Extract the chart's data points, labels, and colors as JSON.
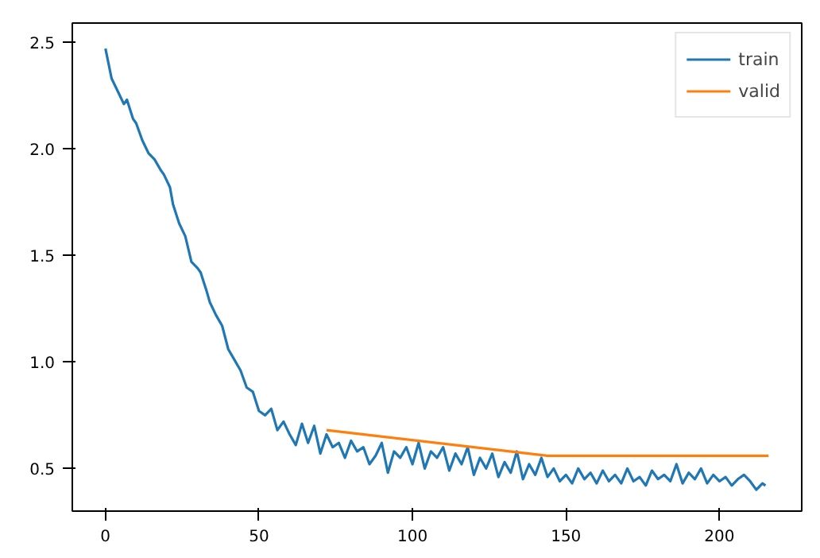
{
  "chart_data": {
    "type": "line",
    "xlim": [
      -10.8,
      226.8
    ],
    "ylim": [
      0.3,
      2.59
    ],
    "xticks": [
      0,
      50,
      100,
      150,
      200
    ],
    "yticks": [
      0.5,
      {
        "value": 1,
        "label": "1.0"
      },
      1.5,
      {
        "value": 2,
        "label": "2.0"
      },
      2.5
    ],
    "grid": false,
    "legend": "top right",
    "series": [
      {
        "name": "train",
        "color": "#1f77b4",
        "x": [
          0,
          2,
          4,
          6,
          7,
          9,
          10,
          12,
          14,
          16,
          18,
          19,
          21,
          22,
          24,
          26,
          28,
          30,
          31,
          33,
          34,
          36,
          38,
          40,
          42,
          44,
          46,
          48,
          50,
          52,
          54,
          56,
          58,
          60,
          62,
          64,
          66,
          68,
          70,
          72,
          74,
          76,
          78,
          80,
          82,
          84,
          86,
          88,
          90,
          92,
          94,
          96,
          98,
          100,
          102,
          104,
          106,
          108,
          110,
          112,
          114,
          116,
          118,
          120,
          122,
          124,
          126,
          128,
          130,
          132,
          134,
          136,
          138,
          140,
          142,
          144,
          146,
          148,
          150,
          152,
          154,
          156,
          158,
          160,
          162,
          164,
          166,
          168,
          170,
          172,
          174,
          176,
          178,
          180,
          182,
          184,
          186,
          188,
          190,
          192,
          194,
          196,
          198,
          200,
          202,
          204,
          206,
          208,
          210,
          212,
          214,
          215
        ],
        "values": [
          2.47,
          2.33,
          2.27,
          2.21,
          2.23,
          2.14,
          2.12,
          2.04,
          1.98,
          1.95,
          1.9,
          1.88,
          1.82,
          1.74,
          1.65,
          1.59,
          1.47,
          1.44,
          1.42,
          1.33,
          1.28,
          1.22,
          1.17,
          1.06,
          1.01,
          0.96,
          0.88,
          0.86,
          0.77,
          0.75,
          0.78,
          0.68,
          0.72,
          0.66,
          0.61,
          0.71,
          0.62,
          0.7,
          0.57,
          0.66,
          0.6,
          0.62,
          0.55,
          0.63,
          0.58,
          0.6,
          0.52,
          0.56,
          0.62,
          0.48,
          0.58,
          0.55,
          0.6,
          0.52,
          0.62,
          0.5,
          0.58,
          0.55,
          0.6,
          0.49,
          0.57,
          0.52,
          0.6,
          0.47,
          0.55,
          0.5,
          0.57,
          0.46,
          0.53,
          0.48,
          0.58,
          0.45,
          0.52,
          0.47,
          0.55,
          0.46,
          0.5,
          0.44,
          0.47,
          0.43,
          0.5,
          0.45,
          0.48,
          0.43,
          0.49,
          0.44,
          0.47,
          0.43,
          0.5,
          0.44,
          0.46,
          0.42,
          0.49,
          0.45,
          0.47,
          0.44,
          0.52,
          0.43,
          0.48,
          0.45,
          0.5,
          0.43,
          0.47,
          0.44,
          0.46,
          0.42,
          0.45,
          0.47,
          0.44,
          0.4,
          0.43,
          0.42
        ]
      },
      {
        "name": "valid",
        "color": "#ff7f0e",
        "x": [
          72,
          144,
          216
        ],
        "values": [
          0.68,
          0.56,
          0.56
        ]
      }
    ]
  }
}
